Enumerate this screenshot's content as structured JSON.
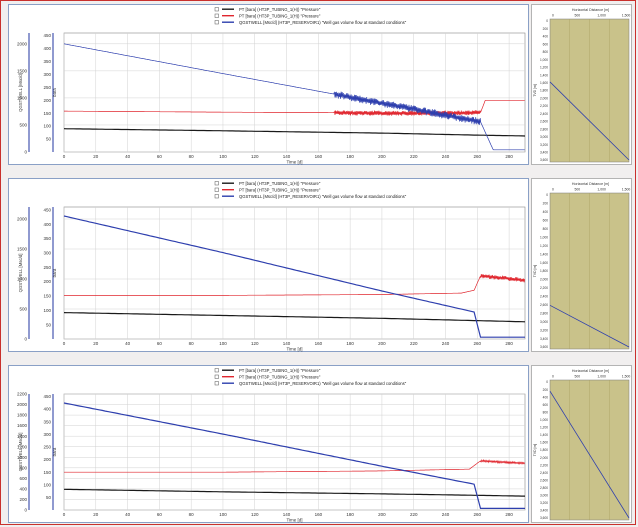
{
  "colors": {
    "black_series": "#1a1a1a",
    "red_series": "#e0262e",
    "blue_series": "#2e3fae",
    "plot_bg": "#ffffff",
    "side_bg": "#c9c28a",
    "grid": "#d2d2d2",
    "axis": "#2236a0"
  },
  "legend": {
    "items": [
      {
        "label": "PT [bara] (HT3P_TUBING_1(H)) \"Pressure\"",
        "color": "#1a1a1a"
      },
      {
        "label": "PT [bara] (HT3P_TUBING_1(H)) \"Pressure\"",
        "color": "#e0262e"
      },
      {
        "label": "QGSTWELL [Msc/d] (HT3P_RESERVOIR1) \"Well gas volume flow at standard conditions\"",
        "color": "#2e3fae"
      }
    ]
  },
  "side_labels": {
    "xlabel": "Horizontal Distance [m]",
    "xticks": [
      "0",
      "500",
      "1,000",
      "1,500"
    ],
    "yticks": [
      "0",
      "200",
      "400",
      "600",
      "800",
      "1,000",
      "1,200",
      "1,400",
      "1,600",
      "1,800",
      "2,000",
      "2,200",
      "2,400",
      "2,600",
      "2,800",
      "3,000",
      "3,200",
      "3,400",
      "3,600"
    ],
    "ylabel": "TVD [m]"
  },
  "chart_data": [
    {
      "type": "line",
      "xlabel": "Time [d]",
      "ylabel_left": "QGSTWELL [Msc/d]",
      "ylabel_right": "bara",
      "xlim": [
        0,
        290
      ],
      "xticks": [
        0,
        20,
        40,
        60,
        80,
        100,
        120,
        140,
        160,
        180,
        200,
        220,
        240,
        260,
        280
      ],
      "ylim_left": [
        0,
        2200
      ],
      "yticks_left": [
        0,
        500,
        1000,
        1500,
        2000
      ],
      "ylim_right": [
        0,
        460
      ],
      "yticks_right": [
        50,
        100,
        150,
        200,
        250,
        300,
        350,
        400,
        450
      ],
      "grid": true,
      "legend_position": "top",
      "series": [
        {
          "name": "PT [bara] (HT3P_TUBING_1(H)) \"Pressure\"",
          "axis": "right",
          "x": [
            0,
            100,
            200,
            262,
            290
          ],
          "y": [
            90,
            82,
            73,
            65,
            62
          ]
        },
        {
          "name": "PT [bara] (HT3P_TUBING_1(H)) \"Pressure\"",
          "axis": "right",
          "x": [
            0,
            100,
            170,
            200,
            240,
            262,
            265,
            290
          ],
          "y": [
            158,
            154,
            152,
            150,
            150,
            152,
            200,
            200
          ],
          "noise_from": 170,
          "noise_to": 262,
          "noise_amp": 10
        },
        {
          "name": "QGSTWELL [Msc/d] (HT3P_RESERVOIR1) \"Well gas volume flow at standard conditions\"",
          "axis": "left",
          "x": [
            0,
            100,
            170,
            200,
            240,
            262,
            270,
            290
          ],
          "y": [
            2000,
            1450,
            1070,
            900,
            680,
            560,
            40,
            40
          ],
          "noise_from": 170,
          "noise_to": 262,
          "noise_amp": 70
        }
      ]
    },
    {
      "type": "line",
      "xlabel": "Time [d]",
      "ylabel_left": "QGSTWELL [Msc/d]",
      "ylabel_right": "bara",
      "xlim": [
        0,
        290
      ],
      "xticks": [
        0,
        20,
        40,
        60,
        80,
        100,
        120,
        140,
        160,
        180,
        200,
        220,
        240,
        260,
        280
      ],
      "ylim_left": [
        0,
        2200
      ],
      "yticks_left": [
        0,
        500,
        1000,
        1500,
        2000
      ],
      "ylim_right": [
        0,
        460
      ],
      "yticks_right": [
        50,
        100,
        150,
        200,
        250,
        300,
        350,
        400,
        450
      ],
      "grid": true,
      "legend_position": "top",
      "series": [
        {
          "name": "PT [bara] (HT3P_TUBING_1(H)) \"Pressure\"",
          "axis": "right",
          "x": [
            0,
            100,
            200,
            260,
            290
          ],
          "y": [
            92,
            82,
            72,
            64,
            60
          ]
        },
        {
          "name": "PT [bara] (HT3P_TUBING_1(H)) \"Pressure\"",
          "axis": "right",
          "x": [
            0,
            100,
            200,
            250,
            258,
            262,
            290
          ],
          "y": [
            152,
            152,
            155,
            160,
            170,
            220,
            205
          ],
          "noise_from": 262,
          "noise_to": 290,
          "noise_amp": 8
        },
        {
          "name": "QGSTWELL [Msc/d] (HT3P_RESERVOIR1) \"Well gas volume flow at standard conditions\"",
          "axis": "left",
          "x": [
            0,
            100,
            200,
            258,
            262,
            290
          ],
          "y": [
            2050,
            1440,
            800,
            450,
            30,
            30
          ]
        }
      ]
    },
    {
      "type": "line",
      "xlabel": "Time [d]",
      "ylabel_left": "QGSTWELL [Msc/d]",
      "ylabel_right": "bara",
      "xlim": [
        0,
        290
      ],
      "xticks": [
        0,
        20,
        40,
        60,
        80,
        100,
        120,
        140,
        160,
        180,
        200,
        220,
        240,
        260,
        280
      ],
      "ylim_left": [
        0,
        2200
      ],
      "yticks_left": [
        0,
        200,
        400,
        600,
        800,
        1000,
        1200,
        1400,
        1600,
        1800,
        2000,
        2200
      ],
      "ylim_right": [
        0,
        460
      ],
      "yticks_right": [
        50,
        100,
        150,
        200,
        250,
        300,
        350,
        400,
        450
      ],
      "grid": true,
      "legend_position": "top",
      "series": [
        {
          "name": "PT [bara] (HT3P_TUBING_1(H)) \"Pressure\"",
          "axis": "right",
          "x": [
            0,
            100,
            200,
            262,
            290
          ],
          "y": [
            82,
            72,
            64,
            58,
            55
          ]
        },
        {
          "name": "PT [bara] (HT3P_TUBING_1(H)) \"Pressure\"",
          "axis": "right",
          "x": [
            0,
            100,
            200,
            255,
            262,
            290
          ],
          "y": [
            150,
            150,
            155,
            162,
            195,
            185
          ],
          "noise_from": 262,
          "noise_to": 290,
          "noise_amp": 4
        },
        {
          "name": "QGSTWELL [Msc/d] (HT3P_RESERVOIR1) \"Well gas volume flow at standard conditions\"",
          "axis": "left",
          "x": [
            0,
            100,
            200,
            258,
            262,
            290
          ],
          "y": [
            2030,
            1440,
            830,
            490,
            30,
            30
          ]
        }
      ]
    }
  ]
}
